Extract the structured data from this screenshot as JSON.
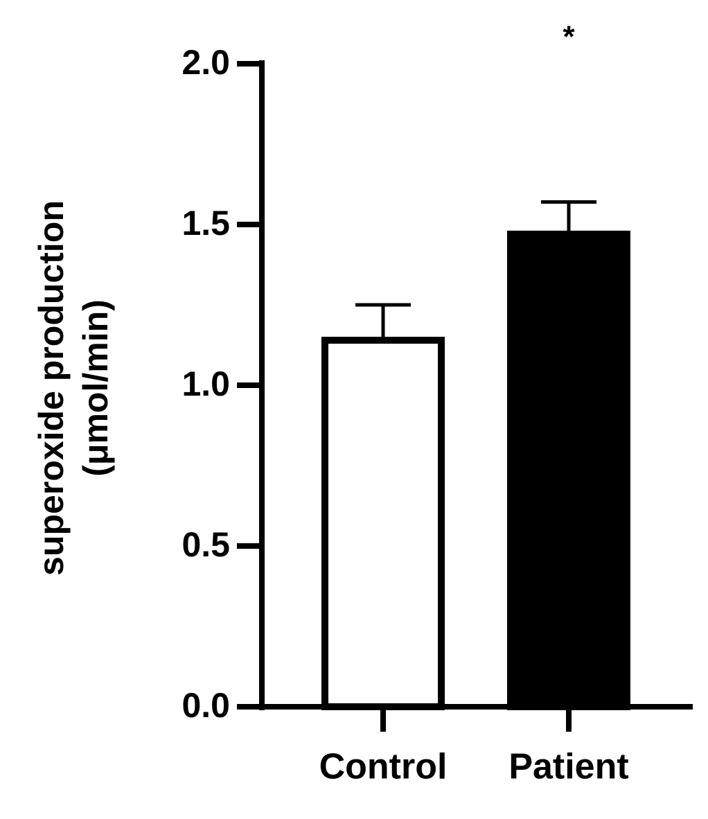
{
  "chart_data": {
    "type": "bar",
    "ylabel": [
      "superoxide production",
      "(μmol/min)"
    ],
    "categories": [
      "Control",
      "Patient"
    ],
    "values": [
      1.14,
      1.47
    ],
    "errors": [
      0.11,
      0.1
    ],
    "colors": [
      "#ffffff",
      "#000000"
    ],
    "edgecolor": "#000000",
    "annotations": [
      {
        "text": "*",
        "category": 1
      }
    ],
    "ylim": [
      0,
      2
    ],
    "yticks": [
      {
        "value": 0,
        "label": "0.0"
      },
      0.5,
      {
        "value": 1,
        "label": "1.0"
      },
      1.5,
      {
        "value": 2,
        "label": "2.0"
      }
    ]
  }
}
